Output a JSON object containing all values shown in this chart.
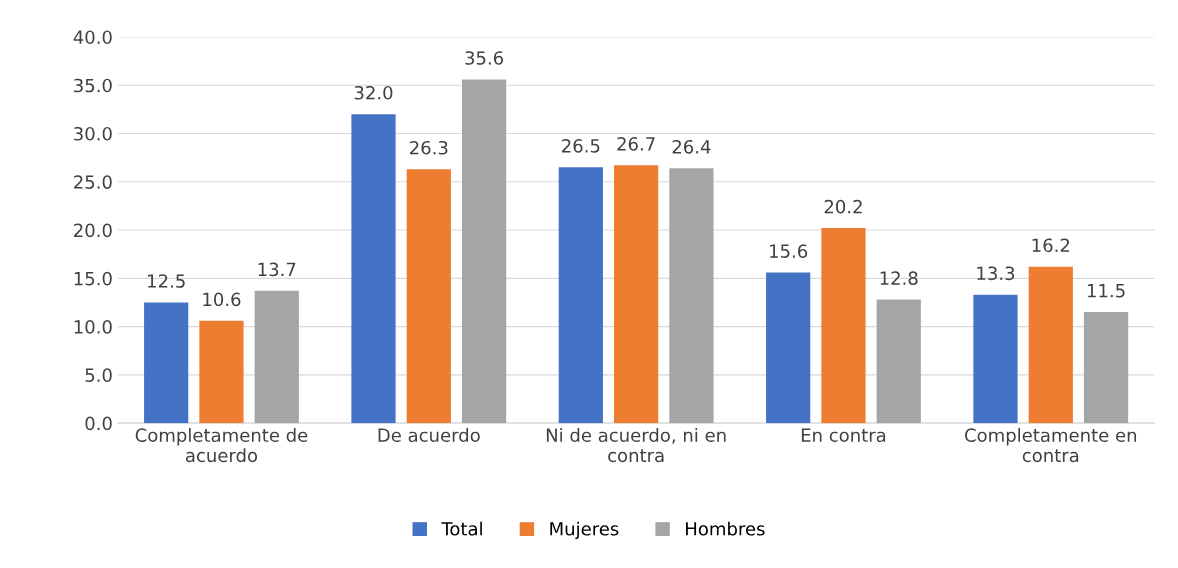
{
  "chart_data": {
    "type": "bar",
    "categories": [
      "Completamente de acuerdo",
      "De acuerdo",
      "Ni de acuerdo, ni en contra",
      "En contra",
      "Completamente en contra"
    ],
    "series": [
      {
        "name": "Total",
        "color": "#4472c4",
        "values": [
          12.5,
          32.0,
          26.5,
          15.6,
          13.3
        ],
        "value_labels": [
          "12.5",
          "32.0",
          "26.5",
          "15.6",
          "13.3"
        ]
      },
      {
        "name": "Mujeres",
        "color": "#ed7d31",
        "values": [
          10.6,
          26.3,
          26.7,
          20.2,
          16.2
        ],
        "value_labels": [
          "10.6",
          "26.3",
          "26.7",
          "20.2",
          "16.2"
        ]
      },
      {
        "name": "Hombres",
        "color": "#a5a5a5",
        "values": [
          13.7,
          35.6,
          26.4,
          12.8,
          11.5
        ],
        "value_labels": [
          "13.7",
          "35.6",
          "26.4",
          "12.8",
          "11.5"
        ]
      }
    ],
    "ylim": [
      0,
      40
    ],
    "yticks": [
      {
        "value": 0,
        "label": "0.0"
      },
      {
        "value": 5,
        "label": "5.0"
      },
      {
        "value": 10,
        "label": "10.0"
      },
      {
        "value": 15,
        "label": "15.0"
      },
      {
        "value": 20,
        "label": "20.0"
      },
      {
        "value": 25,
        "label": "25.0"
      },
      {
        "value": 30,
        "label": "30.0"
      },
      {
        "value": 35,
        "label": "35.0"
      },
      {
        "value": 40,
        "label": "40.0"
      }
    ],
    "grid": "y",
    "legend": "bottom"
  }
}
